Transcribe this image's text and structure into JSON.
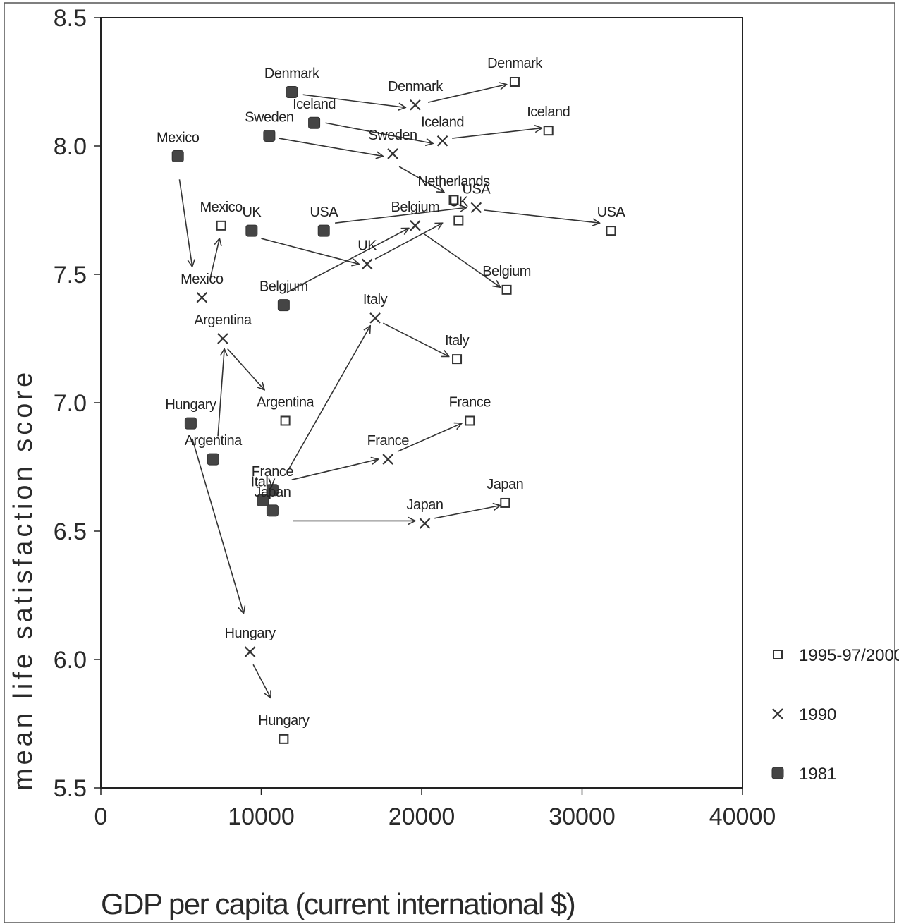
{
  "chart_data": {
    "type": "scatter",
    "xlabel": "GDP per capita (current international $)",
    "ylabel": "mean life satisfaction score",
    "xlim": [
      0,
      40000
    ],
    "ylim": [
      5.5,
      8.5
    ],
    "x_ticks": [
      "0",
      "10000",
      "20000",
      "30000",
      "40000"
    ],
    "y_ticks": [
      "5.5",
      "6.0",
      "6.5",
      "7.0",
      "7.5",
      "8.0",
      "8.5"
    ],
    "legend_position": "right",
    "series": [
      {
        "name": "1995-97/2000",
        "marker": "open-square",
        "points": [
          {
            "label": "Denmark",
            "x": 25800,
            "y": 8.25
          },
          {
            "label": "Iceland",
            "x": 27900,
            "y": 8.06
          },
          {
            "label": "Netherlands",
            "x": 22000,
            "y": 7.79
          },
          {
            "label": "UK",
            "x": 22300,
            "y": 7.71
          },
          {
            "label": "USA",
            "x": 31800,
            "y": 7.67
          },
          {
            "label": "Mexico",
            "x": 7500,
            "y": 7.69
          },
          {
            "label": "Belgium",
            "x": 25300,
            "y": 7.44
          },
          {
            "label": "Italy",
            "x": 22200,
            "y": 7.17
          },
          {
            "label": "France",
            "x": 23000,
            "y": 6.93
          },
          {
            "label": "Argentina",
            "x": 11500,
            "y": 6.93
          },
          {
            "label": "Japan",
            "x": 25200,
            "y": 6.61
          },
          {
            "label": "Hungary",
            "x": 11400,
            "y": 5.69
          }
        ]
      },
      {
        "name": "1990",
        "marker": "x",
        "points": [
          {
            "label": "Denmark",
            "x": 19600,
            "y": 8.16
          },
          {
            "label": "Iceland",
            "x": 21300,
            "y": 8.02
          },
          {
            "label": "Sweden",
            "x": 18200,
            "y": 7.97
          },
          {
            "label": "USA",
            "x": 23400,
            "y": 7.76
          },
          {
            "label": "Belgium",
            "x": 19600,
            "y": 7.69
          },
          {
            "label": "UK",
            "x": 16600,
            "y": 7.54
          },
          {
            "label": "Mexico",
            "x": 6300,
            "y": 7.41
          },
          {
            "label": "Italy",
            "x": 17100,
            "y": 7.33
          },
          {
            "label": "Argentina",
            "x": 7600,
            "y": 7.25
          },
          {
            "label": "France",
            "x": 17900,
            "y": 6.78
          },
          {
            "label": "Japan",
            "x": 20200,
            "y": 6.53
          },
          {
            "label": "Hungary",
            "x": 9300,
            "y": 6.03
          }
        ]
      },
      {
        "name": "1981",
        "marker": "filled-square",
        "points": [
          {
            "label": "Denmark",
            "x": 11900,
            "y": 8.21
          },
          {
            "label": "Iceland",
            "x": 13300,
            "y": 8.09
          },
          {
            "label": "Sweden",
            "x": 10500,
            "y": 8.04
          },
          {
            "label": "Mexico",
            "x": 4800,
            "y": 7.96
          },
          {
            "label": "UK",
            "x": 9400,
            "y": 7.67
          },
          {
            "label": "USA",
            "x": 13900,
            "y": 7.67
          },
          {
            "label": "Belgium",
            "x": 11400,
            "y": 7.38
          },
          {
            "label": "Hungary",
            "x": 5600,
            "y": 6.92
          },
          {
            "label": "Argentina",
            "x": 7000,
            "y": 6.78
          },
          {
            "label": "France",
            "x": 10700,
            "y": 6.66
          },
          {
            "label": "Italy",
            "x": 10100,
            "y": 6.62
          },
          {
            "label": "Japan",
            "x": 10700,
            "y": 6.58
          }
        ]
      }
    ],
    "arrows": [
      {
        "from": [
          12600,
          8.2
        ],
        "to": [
          19000,
          8.15
        ]
      },
      {
        "from": [
          20400,
          8.17
        ],
        "to": [
          25300,
          8.24
        ]
      },
      {
        "from": [
          14000,
          8.09
        ],
        "to": [
          20700,
          8.01
        ]
      },
      {
        "from": [
          21900,
          8.03
        ],
        "to": [
          27500,
          8.07
        ]
      },
      {
        "from": [
          11100,
          8.03
        ],
        "to": [
          17600,
          7.96
        ]
      },
      {
        "from": [
          18600,
          7.92
        ],
        "to": [
          21400,
          7.82
        ]
      },
      {
        "from": [
          4900,
          7.87
        ],
        "to": [
          5700,
          7.53
        ]
      },
      {
        "from": [
          6800,
          7.48
        ],
        "to": [
          7400,
          7.64
        ]
      },
      {
        "from": [
          10000,
          7.64
        ],
        "to": [
          16100,
          7.54
        ]
      },
      {
        "from": [
          17100,
          7.56
        ],
        "to": [
          21300,
          7.7
        ]
      },
      {
        "from": [
          14600,
          7.7
        ],
        "to": [
          22800,
          7.76
        ]
      },
      {
        "from": [
          23900,
          7.75
        ],
        "to": [
          31100,
          7.7
        ]
      },
      {
        "from": [
          11600,
          7.43
        ],
        "to": [
          19200,
          7.68
        ]
      },
      {
        "from": [
          20100,
          7.66
        ],
        "to": [
          24900,
          7.45
        ]
      },
      {
        "from": [
          7300,
          6.87
        ],
        "to": [
          7700,
          7.21
        ]
      },
      {
        "from": [
          7900,
          7.21
        ],
        "to": [
          10200,
          7.05
        ]
      },
      {
        "from": [
          11700,
          6.74
        ],
        "to": [
          16800,
          7.3
        ]
      },
      {
        "from": [
          17600,
          7.31
        ],
        "to": [
          21700,
          7.18
        ]
      },
      {
        "from": [
          11900,
          6.7
        ],
        "to": [
          17300,
          6.78
        ]
      },
      {
        "from": [
          18500,
          6.81
        ],
        "to": [
          22500,
          6.92
        ]
      },
      {
        "from": [
          12000,
          6.54
        ],
        "to": [
          19600,
          6.54
        ]
      },
      {
        "from": [
          20800,
          6.55
        ],
        "to": [
          24900,
          6.6
        ]
      },
      {
        "from": [
          5700,
          6.86
        ],
        "to": [
          8900,
          6.18
        ]
      },
      {
        "from": [
          9500,
          5.98
        ],
        "to": [
          10600,
          5.85
        ]
      }
    ]
  }
}
